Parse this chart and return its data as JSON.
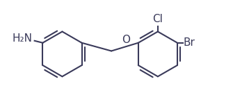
{
  "background_color": "#ffffff",
  "line_color": "#3a3a5a",
  "line_width": 1.5,
  "font_size_labels": 11,
  "figsize": [
    3.35,
    1.5
  ],
  "dpi": 100,
  "label_nh2": "H₂N",
  "label_cl": "Cl",
  "label_br": "Br",
  "label_o": "O"
}
